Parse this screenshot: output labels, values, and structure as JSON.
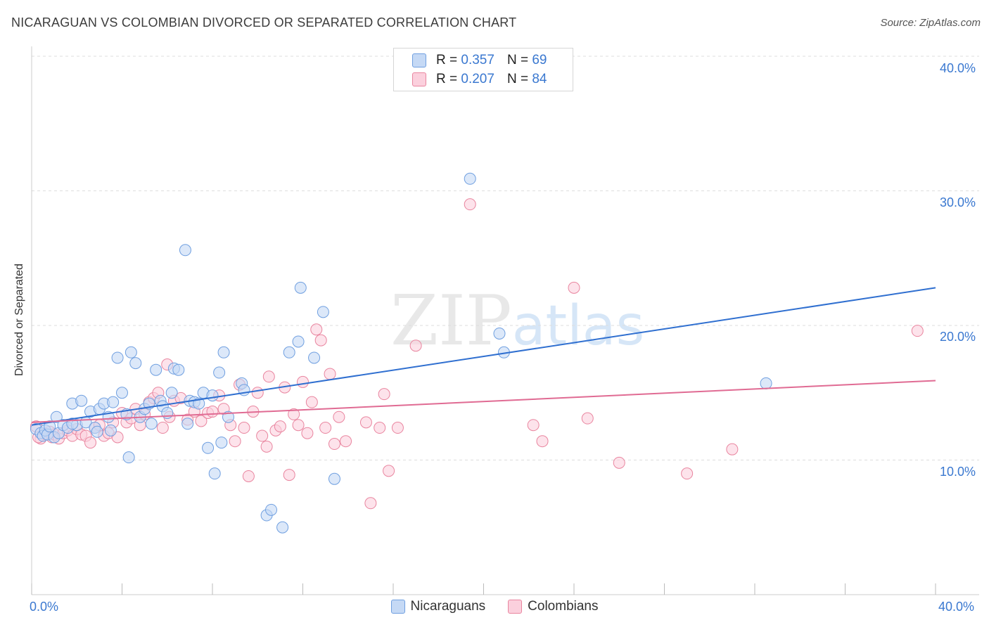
{
  "title": "NICARAGUAN VS COLOMBIAN DIVORCED OR SEPARATED CORRELATION CHART",
  "source": "Source: ZipAtlas.com",
  "watermark": {
    "zip": "ZIP",
    "atlas": "atlas"
  },
  "legend_top": [
    {
      "r_label": "R =",
      "r_value": "0.357",
      "n_label": "N =",
      "n_value": "69"
    },
    {
      "r_label": "R =",
      "r_value": "0.207",
      "n_label": "N =",
      "n_value": "84"
    }
  ],
  "legend_bottom": [
    "Nicaraguans",
    "Colombians"
  ],
  "colors": {
    "blue_fill": "#c5d9f5",
    "blue_stroke": "#6f9fe0",
    "blue_line": "#2f6fd0",
    "pink_fill": "#fbd0dd",
    "pink_stroke": "#e9859f",
    "pink_line": "#e06b93",
    "tick_text": "#3a78d0",
    "grid": "#dddddd"
  },
  "chart_data": {
    "type": "scatter",
    "title": "NICARAGUAN VS COLOMBIAN DIVORCED OR SEPARATED CORRELATION CHART",
    "xlabel": "",
    "ylabel": "Divorced or Separated",
    "xlim": [
      0,
      40
    ],
    "ylim": [
      0,
      40
    ],
    "x_tick_labels": [
      "0.0%",
      "40.0%"
    ],
    "y_ticks": [
      10,
      20,
      30,
      40
    ],
    "y_tick_labels": [
      "10.0%",
      "20.0%",
      "30.0%",
      "40.0%"
    ],
    "grid": true,
    "legend_position": "top-center",
    "series": [
      {
        "name": "Nicaraguans",
        "R": 0.357,
        "N": 69,
        "trend": {
          "x": [
            0,
            40
          ],
          "y": [
            12.6,
            22.8
          ]
        },
        "points": [
          [
            0.2,
            12.3
          ],
          [
            0.4,
            12.0
          ],
          [
            0.5,
            11.8
          ],
          [
            0.6,
            12.2
          ],
          [
            0.7,
            11.9
          ],
          [
            0.8,
            12.5
          ],
          [
            1.0,
            11.7
          ],
          [
            1.1,
            13.2
          ],
          [
            1.2,
            12.0
          ],
          [
            1.4,
            12.6
          ],
          [
            1.6,
            12.4
          ],
          [
            1.8,
            14.2
          ],
          [
            2.0,
            12.6
          ],
          [
            2.2,
            14.4
          ],
          [
            2.4,
            12.8
          ],
          [
            2.6,
            13.6
          ],
          [
            2.8,
            12.4
          ],
          [
            3.0,
            13.8
          ],
          [
            3.2,
            14.2
          ],
          [
            3.4,
            13.2
          ],
          [
            3.5,
            12.2
          ],
          [
            3.6,
            14.3
          ],
          [
            3.8,
            17.6
          ],
          [
            4.0,
            15.0
          ],
          [
            4.2,
            13.4
          ],
          [
            4.3,
            10.2
          ],
          [
            4.4,
            18.0
          ],
          [
            4.6,
            17.2
          ],
          [
            4.8,
            13.2
          ],
          [
            5.0,
            13.8
          ],
          [
            5.2,
            14.2
          ],
          [
            5.3,
            12.7
          ],
          [
            5.5,
            16.7
          ],
          [
            5.7,
            14.4
          ],
          [
            5.8,
            14.0
          ],
          [
            6.0,
            13.5
          ],
          [
            6.2,
            15.0
          ],
          [
            6.3,
            16.8
          ],
          [
            6.5,
            16.7
          ],
          [
            6.8,
            25.6
          ],
          [
            6.9,
            12.7
          ],
          [
            7.0,
            14.4
          ],
          [
            7.2,
            14.3
          ],
          [
            7.4,
            14.2
          ],
          [
            7.6,
            15.0
          ],
          [
            7.8,
            10.9
          ],
          [
            8.0,
            14.8
          ],
          [
            8.1,
            9.0
          ],
          [
            8.3,
            16.5
          ],
          [
            8.4,
            11.3
          ],
          [
            8.5,
            18.0
          ],
          [
            8.7,
            13.2
          ],
          [
            9.3,
            15.7
          ],
          [
            9.4,
            15.2
          ],
          [
            10.4,
            5.9
          ],
          [
            10.6,
            6.3
          ],
          [
            11.1,
            5.0
          ],
          [
            11.4,
            18.0
          ],
          [
            11.8,
            18.8
          ],
          [
            11.9,
            22.8
          ],
          [
            12.5,
            17.6
          ],
          [
            12.9,
            21.0
          ],
          [
            13.4,
            8.6
          ],
          [
            19.4,
            30.9
          ],
          [
            20.7,
            19.4
          ],
          [
            20.9,
            18.0
          ],
          [
            32.5,
            15.7
          ],
          [
            1.8,
            12.7
          ],
          [
            2.9,
            12.1
          ]
        ]
      },
      {
        "name": "Colombians",
        "R": 0.207,
        "N": 84,
        "trend": {
          "x": [
            0,
            40
          ],
          "y": [
            12.8,
            15.9
          ]
        },
        "points": [
          [
            0.2,
            12.5
          ],
          [
            0.4,
            11.6
          ],
          [
            0.6,
            11.9
          ],
          [
            0.8,
            12.1
          ],
          [
            0.9,
            11.7
          ],
          [
            1.0,
            11.9
          ],
          [
            1.2,
            11.6
          ],
          [
            1.4,
            12.0
          ],
          [
            1.6,
            12.2
          ],
          [
            1.8,
            11.8
          ],
          [
            2.0,
            12.3
          ],
          [
            2.2,
            11.9
          ],
          [
            2.4,
            11.8
          ],
          [
            2.6,
            11.3
          ],
          [
            2.8,
            12.4
          ],
          [
            3.0,
            12.6
          ],
          [
            3.2,
            11.8
          ],
          [
            3.4,
            12.0
          ],
          [
            3.6,
            12.8
          ],
          [
            3.8,
            11.7
          ],
          [
            4.0,
            13.5
          ],
          [
            4.2,
            12.8
          ],
          [
            4.4,
            13.1
          ],
          [
            4.6,
            13.8
          ],
          [
            4.8,
            12.6
          ],
          [
            5.0,
            13.4
          ],
          [
            5.2,
            14.3
          ],
          [
            5.4,
            14.6
          ],
          [
            5.6,
            15.0
          ],
          [
            5.8,
            12.4
          ],
          [
            6.0,
            17.1
          ],
          [
            6.1,
            13.2
          ],
          [
            6.3,
            14.4
          ],
          [
            6.6,
            14.6
          ],
          [
            6.9,
            13.0
          ],
          [
            7.2,
            13.6
          ],
          [
            7.5,
            12.9
          ],
          [
            7.8,
            13.5
          ],
          [
            8.0,
            13.6
          ],
          [
            8.3,
            14.8
          ],
          [
            8.5,
            13.8
          ],
          [
            8.8,
            12.6
          ],
          [
            9.0,
            11.4
          ],
          [
            9.2,
            15.6
          ],
          [
            9.4,
            12.4
          ],
          [
            9.6,
            8.8
          ],
          [
            9.8,
            13.6
          ],
          [
            10.0,
            15.0
          ],
          [
            10.2,
            11.8
          ],
          [
            10.4,
            11.0
          ],
          [
            10.5,
            16.2
          ],
          [
            10.8,
            12.2
          ],
          [
            11.0,
            12.5
          ],
          [
            11.2,
            15.4
          ],
          [
            11.4,
            8.9
          ],
          [
            11.6,
            13.4
          ],
          [
            11.8,
            12.6
          ],
          [
            12.0,
            15.8
          ],
          [
            12.2,
            12.0
          ],
          [
            12.4,
            14.3
          ],
          [
            12.6,
            19.7
          ],
          [
            12.8,
            18.9
          ],
          [
            13.0,
            12.4
          ],
          [
            13.2,
            16.4
          ],
          [
            13.4,
            11.2
          ],
          [
            13.6,
            13.2
          ],
          [
            13.9,
            11.4
          ],
          [
            14.8,
            12.8
          ],
          [
            15.0,
            6.8
          ],
          [
            15.4,
            12.4
          ],
          [
            15.6,
            14.9
          ],
          [
            15.8,
            9.2
          ],
          [
            16.2,
            12.4
          ],
          [
            17.0,
            18.5
          ],
          [
            19.4,
            29.0
          ],
          [
            22.2,
            12.6
          ],
          [
            22.6,
            11.4
          ],
          [
            24.0,
            22.8
          ],
          [
            24.6,
            13.1
          ],
          [
            26.0,
            9.8
          ],
          [
            29.0,
            9.0
          ],
          [
            31.0,
            10.8
          ],
          [
            39.2,
            19.6
          ],
          [
            0.3,
            11.7
          ]
        ]
      }
    ]
  }
}
